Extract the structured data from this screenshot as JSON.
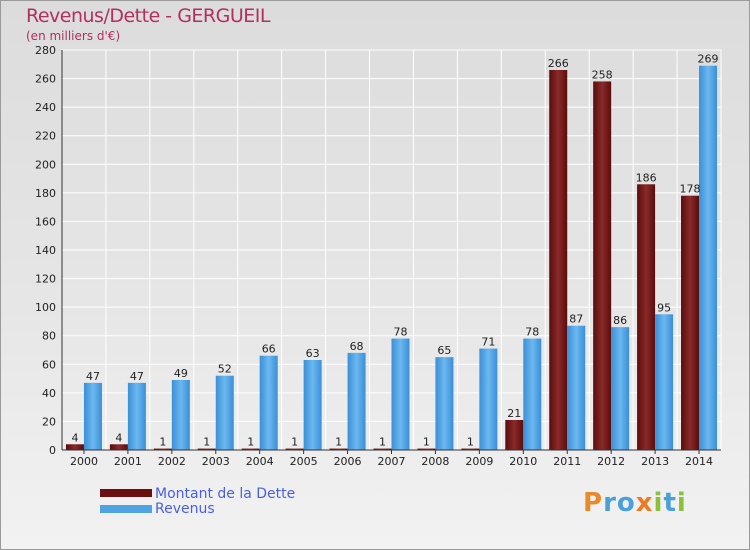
{
  "chart_data": {
    "type": "bar",
    "title": "Revenus/Dette - GERGUEIL",
    "subtitle": "(en milliers d'€)",
    "categories": [
      "2000",
      "2001",
      "2002",
      "2003",
      "2004",
      "2005",
      "2006",
      "2007",
      "2008",
      "2009",
      "2010",
      "2011",
      "2012",
      "2013",
      "2014"
    ],
    "ylim": [
      0,
      280
    ],
    "yticks": [
      0,
      20,
      40,
      60,
      80,
      100,
      120,
      140,
      160,
      180,
      200,
      220,
      240,
      260,
      280
    ],
    "grid": true,
    "series": [
      {
        "name": "Montant de la Dette",
        "color": "#7a1a1a",
        "values": [
          4,
          4,
          1,
          1,
          1,
          1,
          1,
          1,
          1,
          1,
          21,
          266,
          258,
          186,
          178
        ]
      },
      {
        "name": "Revenus",
        "color": "#4ea3e3",
        "values": [
          47,
          47,
          49,
          52,
          66,
          63,
          68,
          78,
          65,
          71,
          78,
          87,
          86,
          95,
          269
        ]
      }
    ]
  },
  "brand": {
    "p": "P",
    "r": "r",
    "o": "o",
    "x": "x",
    "i1": "i",
    "t": "t",
    "i2": "i"
  }
}
